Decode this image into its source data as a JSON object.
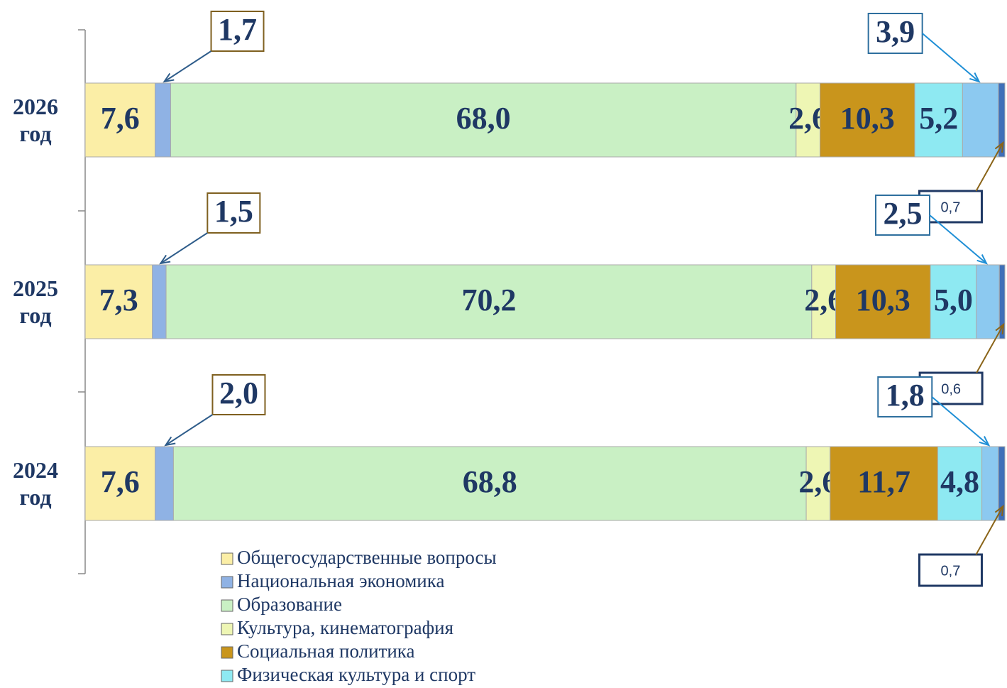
{
  "chart_data": {
    "type": "stacked-bar-horizontal",
    "categories": [
      "2026 год",
      "2025 год",
      "2024 год"
    ],
    "series": [
      {
        "name": "Общегосударственные вопросы",
        "color": "#fbeea6",
        "values": [
          7.6,
          7.3,
          7.6
        ],
        "value_labels": [
          "7,6",
          "7,3",
          "7,6"
        ]
      },
      {
        "name": "Национальная экономика",
        "color": "#8fb2e4",
        "values": [
          1.7,
          1.5,
          2.0
        ],
        "value_labels": [
          "1,7",
          "1,5",
          "2,0"
        ]
      },
      {
        "name": "Образование",
        "color": "#c9f0c4",
        "values": [
          68.0,
          70.2,
          68.8
        ],
        "value_labels": [
          "68,0",
          "70,2",
          "68,8"
        ]
      },
      {
        "name": "Культура, кинематография",
        "color": "#eef6b4",
        "values": [
          2.6,
          2.6,
          2.6
        ],
        "value_labels": [
          "2,6",
          "2,6",
          "2,6"
        ]
      },
      {
        "name": "Социальная политика",
        "color": "#c9951c",
        "values": [
          10.3,
          10.3,
          11.7
        ],
        "value_labels": [
          "10,3",
          "10,3",
          "11,7"
        ]
      },
      {
        "name": "Физическая культура и спорт",
        "color": "#8ee9f2",
        "values": [
          5.2,
          5.0,
          4.8
        ],
        "value_labels": [
          "5,2",
          "5,0",
          "4,8"
        ]
      },
      {
        "color": "#8cc9f0",
        "values": [
          3.9,
          2.5,
          1.8
        ],
        "value_labels": [
          "3,9",
          "2,5",
          "1,8"
        ]
      },
      {
        "color": "#3f6fb8",
        "values": [
          0.7,
          0.6,
          0.7
        ],
        "value_labels": [
          "0,7",
          "0,6",
          "0,7"
        ]
      }
    ]
  }
}
